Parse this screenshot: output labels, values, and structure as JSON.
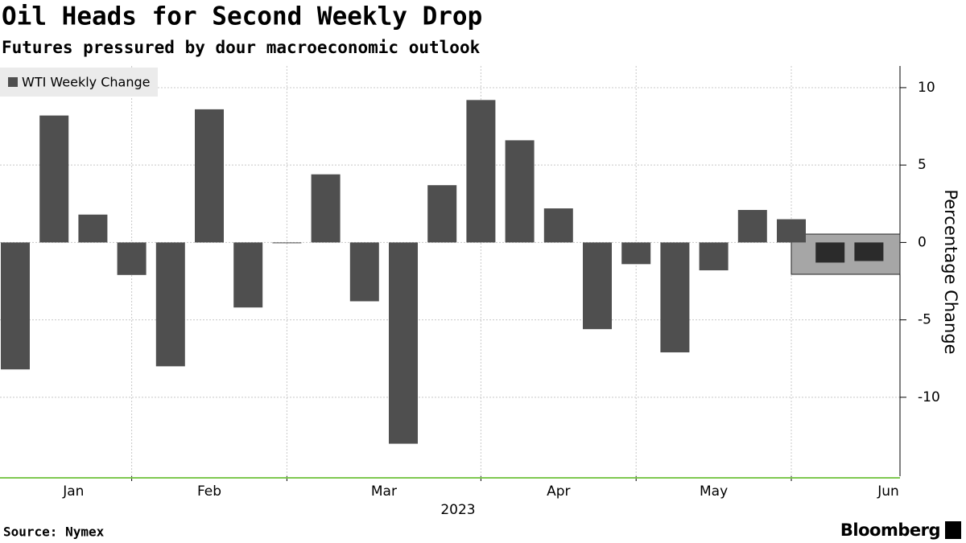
{
  "chart_data": {
    "type": "bar",
    "title": "Oil Heads for Second Weekly Drop",
    "subtitle": "Futures pressured by dour macroeconomic outlook",
    "categories": [
      null,
      null,
      null,
      null,
      null,
      null,
      null,
      null,
      null,
      null,
      null,
      null,
      null,
      null,
      null,
      null,
      null,
      null,
      null,
      null,
      null,
      null,
      null
    ],
    "series": [
      {
        "name": "WTI Weekly Change",
        "color": "#4f4f4f",
        "values": [
          -8.2,
          8.2,
          1.8,
          -2.1,
          -8.0,
          8.6,
          -4.2,
          0,
          4.4,
          -3.8,
          -13.0,
          3.7,
          9.2,
          6.6,
          2.2,
          -5.6,
          -1.4,
          -7.1,
          -1.8,
          2.1,
          1.5,
          -1.3,
          -1.2
        ],
        "colors": [
          "#4f4f4f",
          "#4f4f4f",
          "#4f4f4f",
          "#4f4f4f",
          "#4f4f4f",
          "#4f4f4f",
          "#4f4f4f",
          "#4f4f4f",
          "#4f4f4f",
          "#4f4f4f",
          "#4f4f4f",
          "#4f4f4f",
          "#4f4f4f",
          "#4f4f4f",
          "#4f4f4f",
          "#4f4f4f",
          "#4f4f4f",
          "#4f4f4f",
          "#4f4f4f",
          "#4f4f4f",
          "#4f4f4f",
          "#2b2b2b",
          "#2b2b2b"
        ]
      }
    ],
    "xticks": [
      {
        "value": 1.5,
        "label": "Jan"
      },
      {
        "value": 5,
        "label": "Feb"
      },
      {
        "value": 9.5,
        "label": "Mar"
      },
      {
        "value": 14,
        "label": "Apr"
      },
      {
        "value": 18,
        "label": "May"
      },
      {
        "value": 22.5,
        "label": "Jun"
      }
    ],
    "xgrid": [
      3,
      7,
      12,
      16,
      20
    ],
    "xlabel": "2023",
    "ylabel": "Percentage Change",
    "ylim": [
      -15.1,
      11.4
    ],
    "yticks": [
      -10,
      -5,
      0,
      5,
      10
    ],
    "grid": true,
    "legend": "top-left",
    "source": "Source: Nymex",
    "brand": "Bloomberg"
  }
}
